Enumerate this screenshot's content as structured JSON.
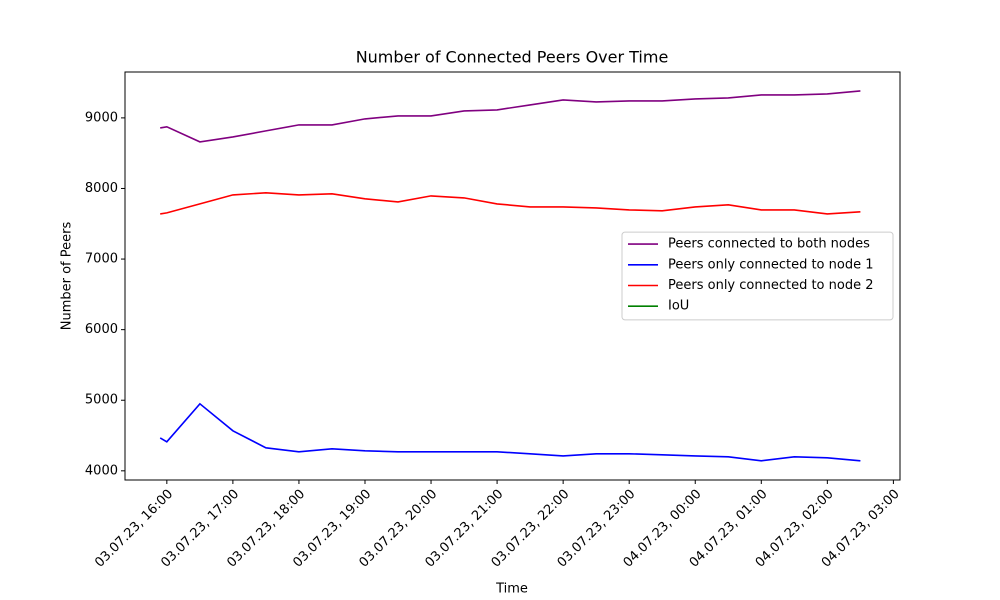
{
  "chart_data": {
    "type": "line",
    "title": "Number of Connected Peers Over Time",
    "xlabel": "Time",
    "ylabel": "Number of Peers",
    "x": [
      "03.07.23, 15:54",
      "03.07.23, 16:00",
      "03.07.23, 16:30",
      "03.07.23, 17:00",
      "03.07.23, 17:30",
      "03.07.23, 18:00",
      "03.07.23, 18:30",
      "03.07.23, 19:00",
      "03.07.23, 19:30",
      "03.07.23, 20:00",
      "03.07.23, 20:30",
      "03.07.23, 21:00",
      "03.07.23, 21:30",
      "03.07.23, 22:00",
      "03.07.23, 22:30",
      "03.07.23, 23:00",
      "03.07.23, 23:30",
      "04.07.23, 00:00",
      "04.07.23, 00:30",
      "04.07.23, 01:00",
      "04.07.23, 01:30",
      "04.07.23, 02:00",
      "04.07.23, 02:30"
    ],
    "series": [
      {
        "name": "Peers connected to both nodes",
        "color": "#800080",
        "values": [
          8858,
          8873,
          8660,
          8731,
          8816,
          8901,
          8901,
          8986,
          9028,
          9028,
          9099,
          9113,
          9184,
          9255,
          9227,
          9241,
          9241,
          9269,
          9283,
          9326,
          9326,
          9340,
          9382
        ]
      },
      {
        "name": "Peers only connected to node 1",
        "color": "#0000ff",
        "values": [
          4467,
          4411,
          4949,
          4567,
          4326,
          4269,
          4312,
          4283,
          4269,
          4269,
          4269,
          4269,
          4241,
          4212,
          4241,
          4241,
          4227,
          4212,
          4198,
          4142,
          4198,
          4184,
          4142
        ]
      },
      {
        "name": "Peers only connected to node 2",
        "color": "#ff0000",
        "values": [
          7640,
          7654,
          7782,
          7909,
          7938,
          7909,
          7924,
          7853,
          7810,
          7895,
          7867,
          7782,
          7739,
          7739,
          7725,
          7697,
          7683,
          7739,
          7768,
          7697,
          7697,
          7640,
          7669
        ]
      },
      {
        "name": "IoU",
        "color": "#008000",
        "values": [
          null,
          null,
          null,
          null,
          null,
          null,
          null,
          null,
          null,
          null,
          null,
          null,
          null,
          null,
          null,
          null,
          null,
          null,
          null,
          null,
          null,
          null,
          null
        ]
      }
    ],
    "xlim": [
      "03.07.23, 15:22",
      "04.07.23, 03:06"
    ],
    "xticks": [
      "03.07.23, 16:00",
      "03.07.23, 17:00",
      "03.07.23, 18:00",
      "03.07.23, 19:00",
      "03.07.23, 20:00",
      "03.07.23, 21:00",
      "03.07.23, 22:00",
      "03.07.23, 23:00",
      "04.07.23, 00:00",
      "04.07.23, 01:00",
      "04.07.23, 02:00",
      "04.07.23, 03:00"
    ],
    "ylim": [
      3870,
      9650
    ],
    "yticks": [
      4000,
      5000,
      6000,
      7000,
      8000,
      9000
    ],
    "legend": "center right",
    "grid": false
  }
}
